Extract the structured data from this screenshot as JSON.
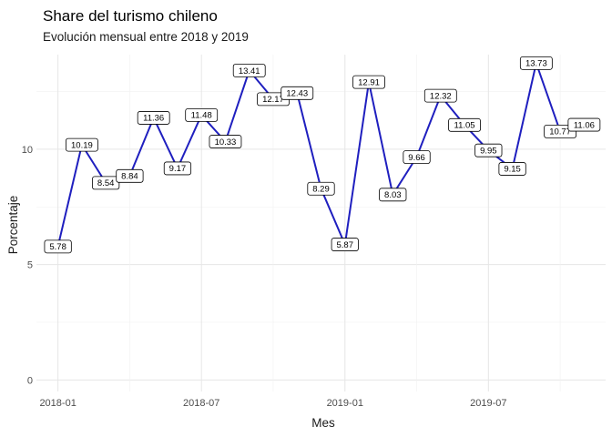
{
  "colors": {
    "line": "#1f1fbf",
    "background": "#ffffff",
    "grid": "#e6e6e6"
  },
  "chart_data": {
    "type": "line",
    "title": "Share del turismo chileno",
    "subtitle": "Evolución mensual entre 2018 y 2019",
    "xlabel": "Mes",
    "ylabel": "Porcentaje",
    "x_ticks": [
      "2018-01",
      "2018-07",
      "2019-01",
      "2019-07"
    ],
    "y_ticks": [
      0,
      5,
      10
    ],
    "ylim": [
      -0.5,
      14.1
    ],
    "grid": true,
    "series": [
      {
        "x": [
          "2018-01",
          "2018-02",
          "2018-03",
          "2018-04",
          "2018-05",
          "2018-06",
          "2018-07",
          "2018-08",
          "2018-09",
          "2018-10",
          "2018-11",
          "2018-12",
          "2019-01",
          "2019-02",
          "2019-03",
          "2019-04",
          "2019-05",
          "2019-06",
          "2019-07",
          "2019-08",
          "2019-09",
          "2019-10",
          "2019-11"
        ],
        "values": [
          5.78,
          10.19,
          8.54,
          8.84,
          11.36,
          9.17,
          11.48,
          10.33,
          13.41,
          12.17,
          12.43,
          8.29,
          5.87,
          12.91,
          8.03,
          9.66,
          12.32,
          11.05,
          9.95,
          9.15,
          13.73,
          10.77,
          11.06
        ],
        "labels": [
          "5.78",
          "10.19",
          "8.54",
          "8.84",
          "11.36",
          "9.17",
          "11.48",
          "10.33",
          "13.41",
          "12.17",
          "12.43",
          "8.29",
          "5.87",
          "12.91",
          "8.03",
          "9.66",
          "12.32",
          "11.05",
          "9.95",
          "9.15",
          "13.73",
          "10.77",
          "11.06"
        ]
      }
    ]
  }
}
